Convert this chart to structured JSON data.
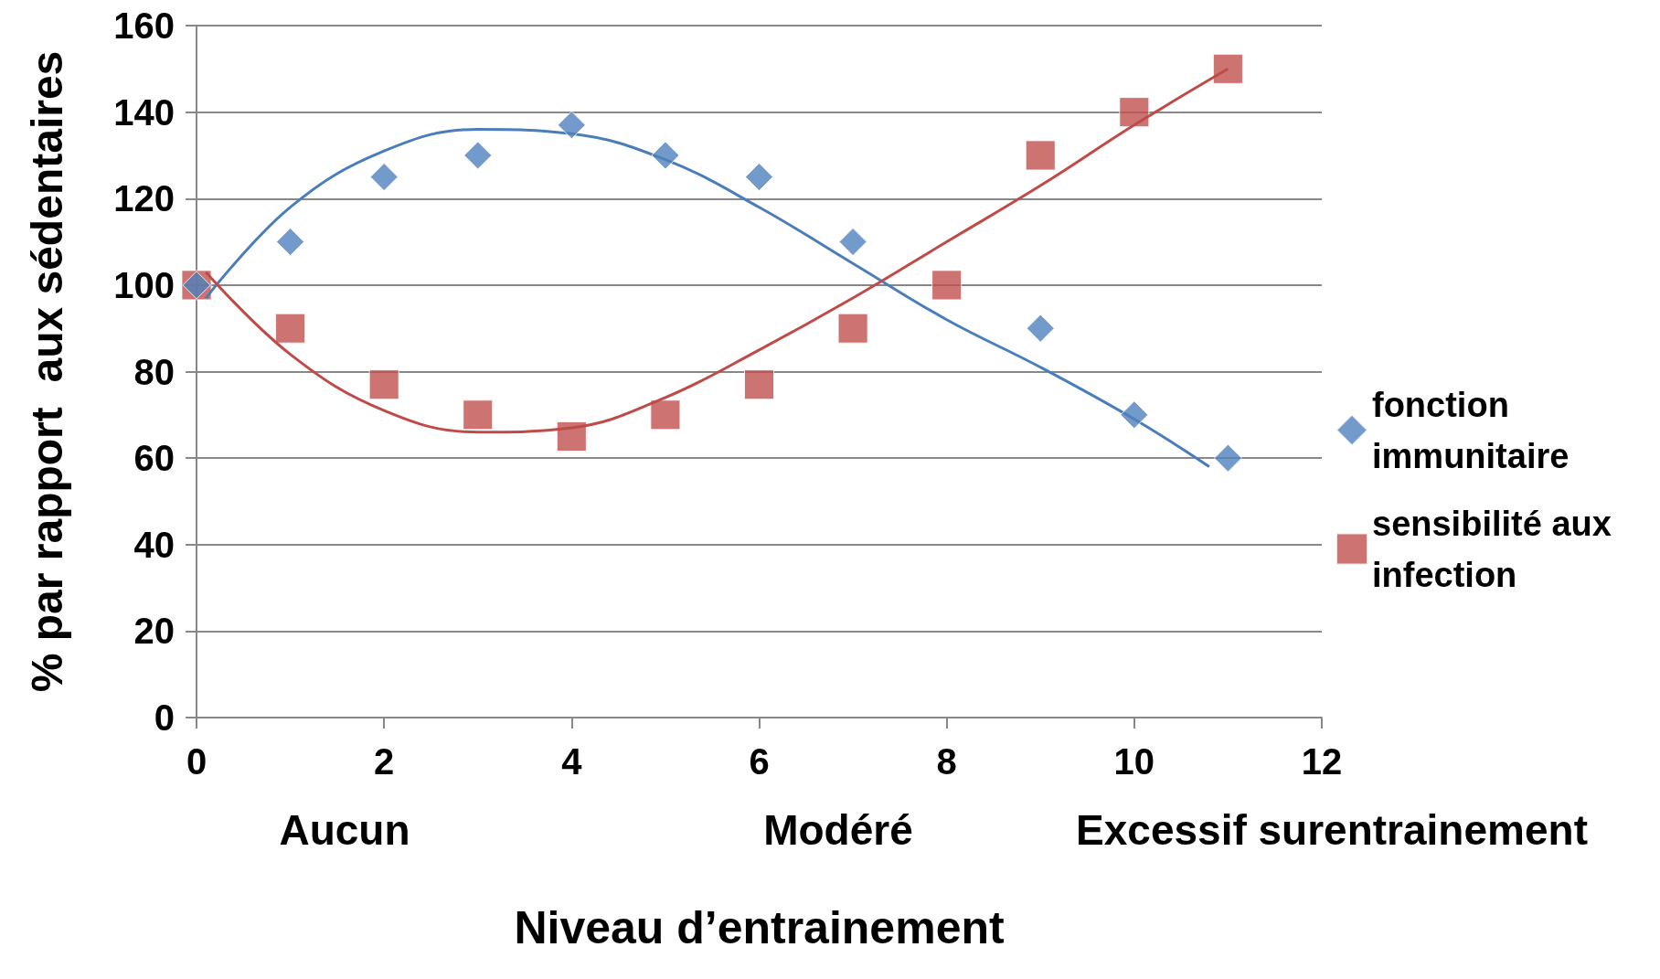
{
  "chart_data": {
    "type": "scatter",
    "xlabel": "Niveau d’entrainement",
    "ylabel": "% par rapport  aux sédentaires",
    "series": [
      {
        "name": "fonction immunitaire",
        "color": "#4f81bd",
        "marker": "diamond",
        "x": [
          0,
          1,
          2,
          3,
          4,
          5,
          6,
          7,
          8,
          9,
          10,
          11
        ],
        "values": [
          100,
          110,
          125,
          130,
          137,
          130,
          125,
          110,
          null,
          90,
          70,
          60
        ]
      },
      {
        "name": "sensibilité aux infection",
        "color": "#c0504d",
        "marker": "square",
        "x": [
          0,
          1,
          2,
          3,
          4,
          5,
          6,
          7,
          8,
          9,
          10,
          11
        ],
        "values": [
          100,
          90,
          77,
          70,
          65,
          70,
          77,
          90,
          100,
          130,
          140,
          150
        ]
      },
      {
        "type": "line",
        "color": "#4a7ebb",
        "marker": "none",
        "x": [
          0.1,
          1,
          2,
          3,
          4,
          5,
          6,
          7,
          8,
          9,
          10,
          10.8
        ],
        "values": [
          97,
          118,
          131,
          136,
          135,
          129,
          118,
          105,
          92,
          81,
          69,
          58
        ]
      },
      {
        "type": "line",
        "color": "#be4b48",
        "marker": "none",
        "x": [
          0.1,
          1,
          2,
          3,
          4,
          5,
          6,
          7,
          8,
          9,
          10,
          11
        ],
        "values": [
          103,
          84,
          71,
          66,
          67,
          74,
          85,
          97,
          110,
          123,
          137,
          150
        ]
      }
    ],
    "xlim": [
      0,
      12
    ],
    "xticks": [
      0,
      2,
      4,
      6,
      8,
      10,
      12
    ],
    "ylim": [
      0,
      160
    ],
    "yticks": [
      0,
      20,
      40,
      60,
      80,
      100,
      120,
      140,
      160
    ],
    "grid": "y",
    "legend": "right",
    "annotations": [
      "Aucun",
      "Modéré",
      "Excessif surentrainement"
    ]
  }
}
